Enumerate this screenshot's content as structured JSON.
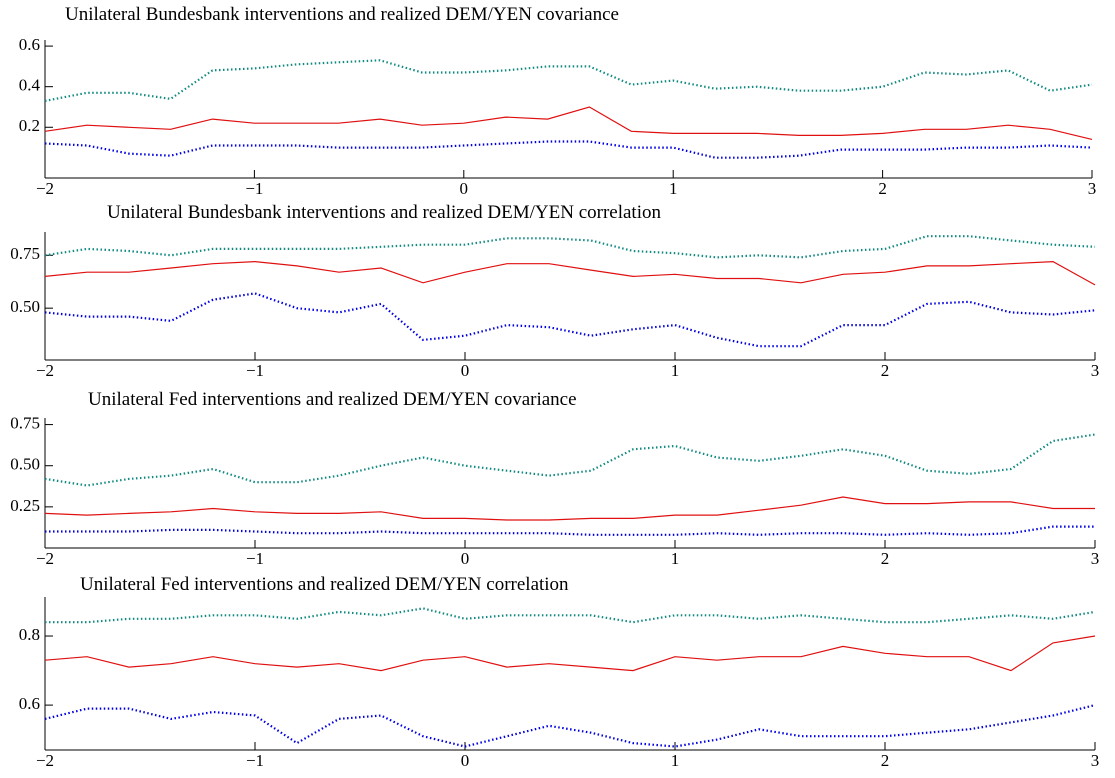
{
  "chart_data": [
    {
      "type": "line",
      "title": "Unilateral Bundesbank interventions and realized DEM/YEN covariance",
      "x": [
        -2,
        -1.8,
        -1.6,
        -1.4,
        -1.2,
        -1.0,
        -0.8,
        -0.6,
        -0.4,
        -0.2,
        0,
        0.2,
        0.4,
        0.6,
        0.8,
        1.0,
        1.2,
        1.4,
        1.6,
        1.8,
        2.0,
        2.2,
        2.4,
        2.6,
        2.8,
        3.0
      ],
      "series": [
        {
          "color": "#108a80",
          "style": "dotted",
          "values": [
            0.33,
            0.37,
            0.37,
            0.34,
            0.48,
            0.49,
            0.51,
            0.52,
            0.53,
            0.47,
            0.47,
            0.48,
            0.5,
            0.5,
            0.41,
            0.43,
            0.39,
            0.4,
            0.38,
            0.38,
            0.4,
            0.47,
            0.46,
            0.48,
            0.38,
            0.41
          ]
        },
        {
          "color": "#e01010",
          "style": "solid",
          "values": [
            0.18,
            0.21,
            0.2,
            0.19,
            0.24,
            0.22,
            0.22,
            0.22,
            0.24,
            0.21,
            0.22,
            0.25,
            0.24,
            0.3,
            0.18,
            0.17,
            0.17,
            0.17,
            0.16,
            0.16,
            0.17,
            0.19,
            0.19,
            0.21,
            0.19,
            0.14
          ]
        },
        {
          "color": "#0000e0",
          "style": "dotted",
          "values": [
            0.12,
            0.11,
            0.07,
            0.06,
            0.11,
            0.11,
            0.11,
            0.1,
            0.1,
            0.1,
            0.11,
            0.12,
            0.13,
            0.13,
            0.1,
            0.1,
            0.05,
            0.05,
            0.06,
            0.09,
            0.09,
            0.09,
            0.1,
            0.1,
            0.11,
            0.1
          ]
        }
      ],
      "xlim": [
        -2,
        3
      ],
      "xticks": [
        {
          "value": -2,
          "label": "−2"
        },
        {
          "value": -1,
          "label": "−1"
        },
        0,
        1,
        2,
        3
      ],
      "ylim": [
        -0.05,
        0.63
      ],
      "yticks": [
        0.2,
        0.4,
        0.6
      ]
    },
    {
      "type": "line",
      "title": "Unilateral Bundesbank interventions and realized DEM/YEN correlation",
      "x": [
        -2,
        -1.8,
        -1.6,
        -1.4,
        -1.2,
        -1.0,
        -0.8,
        -0.6,
        -0.4,
        -0.2,
        0,
        0.2,
        0.4,
        0.6,
        0.8,
        1.0,
        1.2,
        1.4,
        1.6,
        1.8,
        2.0,
        2.2,
        2.4,
        2.6,
        2.8,
        3.0
      ],
      "series": [
        {
          "color": "#108a80",
          "style": "dotted",
          "values": [
            0.75,
            0.78,
            0.77,
            0.75,
            0.78,
            0.78,
            0.78,
            0.78,
            0.79,
            0.8,
            0.8,
            0.83,
            0.83,
            0.82,
            0.77,
            0.76,
            0.74,
            0.75,
            0.74,
            0.77,
            0.78,
            0.84,
            0.84,
            0.82,
            0.8,
            0.79
          ]
        },
        {
          "color": "#e01010",
          "style": "solid",
          "values": [
            0.65,
            0.67,
            0.67,
            0.69,
            0.71,
            0.72,
            0.7,
            0.67,
            0.69,
            0.62,
            0.67,
            0.71,
            0.71,
            0.68,
            0.65,
            0.66,
            0.64,
            0.64,
            0.62,
            0.66,
            0.67,
            0.7,
            0.7,
            0.71,
            0.72,
            0.61
          ]
        },
        {
          "color": "#0000e0",
          "style": "dotted",
          "values": [
            0.48,
            0.46,
            0.46,
            0.44,
            0.54,
            0.57,
            0.5,
            0.48,
            0.52,
            0.35,
            0.37,
            0.42,
            0.41,
            0.37,
            0.4,
            0.42,
            0.36,
            0.32,
            0.32,
            0.42,
            0.42,
            0.52,
            0.53,
            0.48,
            0.47,
            0.49
          ]
        }
      ],
      "xlim": [
        -2,
        3
      ],
      "xticks": [
        {
          "value": -2,
          "label": "−2"
        },
        {
          "value": -1,
          "label": "−1"
        },
        0,
        1,
        2,
        3
      ],
      "ylim": [
        0.255,
        0.86
      ],
      "yticks": [
        {
          "value": 0.5,
          "label": "0.50"
        },
        0.75
      ]
    },
    {
      "type": "line",
      "title": "Unilateral Fed interventions and realized DEM/YEN covariance",
      "x": [
        -2,
        -1.8,
        -1.6,
        -1.4,
        -1.2,
        -1.0,
        -0.8,
        -0.6,
        -0.4,
        -0.2,
        0,
        0.2,
        0.4,
        0.6,
        0.8,
        1.0,
        1.2,
        1.4,
        1.6,
        1.8,
        2.0,
        2.2,
        2.4,
        2.6,
        2.8,
        3.0
      ],
      "series": [
        {
          "color": "#108a80",
          "style": "dotted",
          "values": [
            0.42,
            0.38,
            0.42,
            0.44,
            0.48,
            0.4,
            0.4,
            0.44,
            0.5,
            0.55,
            0.5,
            0.47,
            0.44,
            0.47,
            0.6,
            0.62,
            0.55,
            0.53,
            0.56,
            0.6,
            0.56,
            0.47,
            0.45,
            0.48,
            0.65,
            0.69
          ]
        },
        {
          "color": "#e01010",
          "style": "solid",
          "values": [
            0.21,
            0.2,
            0.21,
            0.22,
            0.24,
            0.22,
            0.21,
            0.21,
            0.22,
            0.18,
            0.18,
            0.17,
            0.17,
            0.18,
            0.18,
            0.2,
            0.2,
            0.23,
            0.26,
            0.31,
            0.27,
            0.27,
            0.28,
            0.28,
            0.24,
            0.24
          ]
        },
        {
          "color": "#0000e0",
          "style": "dotted",
          "values": [
            0.1,
            0.1,
            0.1,
            0.11,
            0.11,
            0.1,
            0.09,
            0.09,
            0.1,
            0.09,
            0.09,
            0.09,
            0.09,
            0.08,
            0.08,
            0.08,
            0.09,
            0.08,
            0.09,
            0.09,
            0.08,
            0.09,
            0.08,
            0.09,
            0.13,
            0.13
          ]
        }
      ],
      "xlim": [
        -2,
        3
      ],
      "xticks": [
        {
          "value": -2,
          "label": "−2"
        },
        {
          "value": -1,
          "label": "−1"
        },
        0,
        1,
        2,
        3
      ],
      "ylim": [
        0.0,
        0.79
      ],
      "yticks": [
        0.25,
        {
          "value": 0.5,
          "label": "0.50"
        },
        0.75
      ]
    },
    {
      "type": "line",
      "title": "Unilateral Fed interventions and realized DEM/YEN correlation",
      "x": [
        -2,
        -1.8,
        -1.6,
        -1.4,
        -1.2,
        -1.0,
        -0.8,
        -0.6,
        -0.4,
        -0.2,
        0,
        0.2,
        0.4,
        0.6,
        0.8,
        1.0,
        1.2,
        1.4,
        1.6,
        1.8,
        2.0,
        2.2,
        2.4,
        2.6,
        2.8,
        3.0
      ],
      "series": [
        {
          "color": "#108a80",
          "style": "dotted",
          "values": [
            0.84,
            0.84,
            0.85,
            0.85,
            0.86,
            0.86,
            0.85,
            0.87,
            0.86,
            0.88,
            0.85,
            0.86,
            0.86,
            0.86,
            0.84,
            0.86,
            0.86,
            0.85,
            0.86,
            0.85,
            0.84,
            0.84,
            0.85,
            0.86,
            0.85,
            0.87
          ]
        },
        {
          "color": "#e01010",
          "style": "solid",
          "values": [
            0.73,
            0.74,
            0.71,
            0.72,
            0.74,
            0.72,
            0.71,
            0.72,
            0.7,
            0.73,
            0.74,
            0.71,
            0.72,
            0.71,
            0.7,
            0.74,
            0.73,
            0.74,
            0.74,
            0.77,
            0.75,
            0.74,
            0.74,
            0.7,
            0.78,
            0.8
          ]
        },
        {
          "color": "#0000e0",
          "style": "dotted",
          "values": [
            0.56,
            0.59,
            0.59,
            0.56,
            0.58,
            0.57,
            0.49,
            0.56,
            0.57,
            0.51,
            0.48,
            0.51,
            0.54,
            0.52,
            0.49,
            0.48,
            0.5,
            0.53,
            0.51,
            0.51,
            0.51,
            0.52,
            0.53,
            0.55,
            0.57,
            0.6
          ]
        }
      ],
      "xlim": [
        -2,
        3
      ],
      "xticks": [
        {
          "value": -2,
          "label": "−2"
        },
        {
          "value": -1,
          "label": "−1"
        },
        0,
        1,
        2,
        3
      ],
      "ylim": [
        0.47,
        0.913
      ],
      "yticks": [
        0.6,
        0.8
      ]
    }
  ]
}
